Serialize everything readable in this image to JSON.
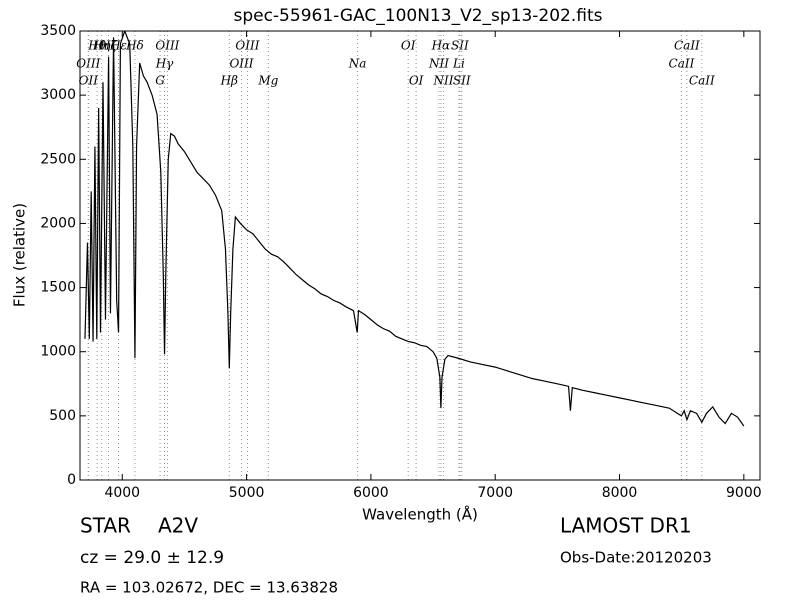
{
  "chart_data": {
    "type": "line",
    "title": "spec-55961-GAC_100N13_V2_sp13-202.fits",
    "xlabel": "Wavelength (Å)",
    "ylabel": "Flux (relative)",
    "xlim": [
      3660,
      9130
    ],
    "ylim": [
      0,
      3500
    ],
    "xticks": [
      4000,
      5000,
      6000,
      7000,
      8000,
      9000
    ],
    "yticks": [
      0,
      500,
      1000,
      1500,
      2000,
      2500,
      3000,
      3500
    ],
    "grid": false,
    "color": "#000000",
    "annotation_color": "#5cb85c",
    "x": [
      3700,
      3720,
      3735,
      3750,
      3765,
      3780,
      3795,
      3810,
      3825,
      3845,
      3865,
      3890,
      3905,
      3930,
      3955,
      3970,
      3985,
      4020,
      4060,
      4085,
      4102,
      4115,
      4140,
      4170,
      4200,
      4240,
      4280,
      4310,
      4330,
      4340,
      4350,
      4370,
      4390,
      4420,
      4450,
      4500,
      4550,
      4600,
      4650,
      4700,
      4750,
      4800,
      4830,
      4850,
      4861,
      4872,
      4890,
      4910,
      4950,
      5000,
      5050,
      5100,
      5150,
      5200,
      5250,
      5300,
      5350,
      5400,
      5450,
      5500,
      5550,
      5600,
      5650,
      5700,
      5750,
      5800,
      5860,
      5890,
      5900,
      5950,
      6000,
      6050,
      6100,
      6150,
      6200,
      6250,
      6300,
      6350,
      6400,
      6450,
      6500,
      6530,
      6555,
      6563,
      6572,
      6595,
      6620,
      6700,
      6800,
      6900,
      7000,
      7100,
      7200,
      7300,
      7400,
      7500,
      7590,
      7605,
      7620,
      7700,
      7800,
      7900,
      8000,
      8100,
      8200,
      8300,
      8400,
      8498,
      8520,
      8542,
      8570,
      8620,
      8662,
      8700,
      8750,
      8800,
      8850,
      8900,
      8950,
      9000
    ],
    "values": [
      1100,
      1850,
      1100,
      2250,
      1080,
      2600,
      1100,
      2900,
      1150,
      3100,
      1250,
      3300,
      1300,
      3450,
      1400,
      1150,
      3400,
      3500,
      3400,
      2600,
      950,
      2600,
      3250,
      3150,
      3100,
      3000,
      2850,
      2400,
      1600,
      980,
      1600,
      2500,
      2700,
      2680,
      2620,
      2560,
      2480,
      2400,
      2350,
      2300,
      2220,
      2100,
      1800,
      1300,
      870,
      1300,
      1800,
      2050,
      2000,
      1950,
      1920,
      1860,
      1800,
      1760,
      1740,
      1700,
      1650,
      1600,
      1560,
      1520,
      1490,
      1450,
      1430,
      1400,
      1380,
      1350,
      1320,
      1150,
      1320,
      1290,
      1250,
      1210,
      1180,
      1160,
      1120,
      1100,
      1080,
      1070,
      1050,
      1040,
      1000,
      950,
      800,
      560,
      800,
      940,
      970,
      950,
      920,
      900,
      880,
      850,
      820,
      790,
      770,
      750,
      730,
      540,
      720,
      700,
      680,
      660,
      640,
      620,
      600,
      580,
      560,
      500,
      540,
      470,
      540,
      520,
      450,
      520,
      570,
      490,
      440,
      520,
      490,
      420
    ],
    "annotations": [
      {
        "label": "Hθ",
        "wavelength": 3798
      },
      {
        "label": "Hη",
        "wavelength": 3835
      },
      {
        "label": "Hζ",
        "wavelength": 3889
      },
      {
        "label": "Hε",
        "wavelength": 3970
      },
      {
        "label": "Hδ",
        "wavelength": 4102
      },
      {
        "label": "OIII",
        "wavelength": 4363
      },
      {
        "label": "OIII",
        "wavelength": 5007
      },
      {
        "label": "OI",
        "wavelength": 6300
      },
      {
        "label": "Hα",
        "wavelength": 6563
      },
      {
        "label": "SII",
        "wavelength": 6716
      },
      {
        "label": "CaII",
        "wavelength": 8542
      },
      {
        "label": "OIII",
        "wavelength": 3727
      },
      {
        "label": "Hγ",
        "wavelength": 4340
      },
      {
        "label": "OIII",
        "wavelength": 4959
      },
      {
        "label": "Na",
        "wavelength": 5893
      },
      {
        "label": "NII",
        "wavelength": 6548
      },
      {
        "label": "Li",
        "wavelength": 6708
      },
      {
        "label": "CaII",
        "wavelength": 8498
      },
      {
        "label": "OII",
        "wavelength": 3727
      },
      {
        "label": "G",
        "wavelength": 4304
      },
      {
        "label": "Hβ",
        "wavelength": 4861
      },
      {
        "label": "Mg",
        "wavelength": 5175
      },
      {
        "label": "OI",
        "wavelength": 6364
      },
      {
        "label": "NII",
        "wavelength": 6584
      },
      {
        "label": "SII",
        "wavelength": 6731
      },
      {
        "label": "CaII",
        "wavelength": 8662
      }
    ],
    "object_class": "STAR",
    "subclass": "A2V",
    "redshift": "cz = 29.0 ± 12.9",
    "coordinates": "RA = 103.02672, DEC = 13.63828",
    "survey": "LAMOST DR1",
    "obs_date": "Obs-Date:20120203"
  }
}
